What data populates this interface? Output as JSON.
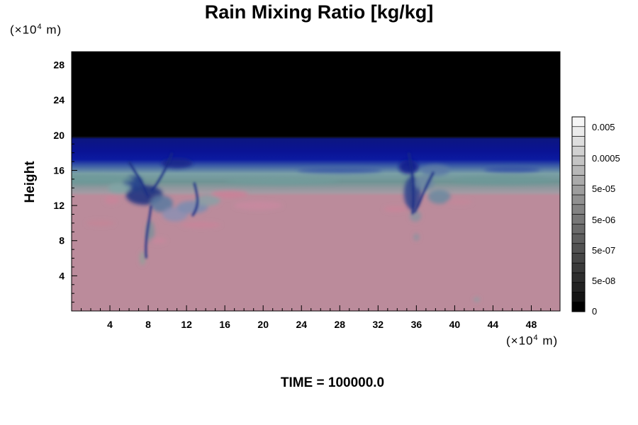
{
  "chart_data": {
    "type": "heatmap",
    "title": "Rain Mixing Ratio [kg/kg]",
    "ylabel": "Height",
    "y_unit": {
      "prefix": "(×10",
      "exp": "4",
      "suffix": " m)"
    },
    "x_unit": {
      "prefix": "(×10",
      "exp": "4",
      "suffix": " m)"
    },
    "xlim": [
      0,
      51
    ],
    "ylim": [
      0,
      29.5
    ],
    "x_ticks": [
      4,
      8,
      12,
      16,
      20,
      24,
      28,
      32,
      36,
      40,
      44,
      48
    ],
    "y_ticks": [
      4,
      8,
      12,
      16,
      20,
      24,
      28
    ],
    "time_label": "TIME = 100000.0",
    "colorbar": {
      "tick_labels": [
        "0",
        "5e-08",
        "5e-07",
        "5e-06",
        "5e-05",
        "0.0005",
        "0.005"
      ],
      "colors": [
        "#000000",
        "#141414",
        "#222222",
        "#2e2e2e",
        "#3a3a3a",
        "#464646",
        "#525252",
        "#5e5e5e",
        "#6a6a6a",
        "#777777",
        "#838383",
        "#909090",
        "#9d9d9d",
        "#aaaaaa",
        "#b7b7b7",
        "#c4c4c4",
        "#d1d1d1",
        "#dedede",
        "#ebebeb",
        "#f6f6f6"
      ]
    },
    "layers": [
      {
        "name": "top",
        "y_from": 19.8,
        "y_to": 29.5,
        "color": "#000000"
      },
      {
        "name": "dark-blue-band",
        "y_from": 16.2,
        "y_to": 19.8,
        "color": "#0a1494"
      },
      {
        "name": "teal-band",
        "y_from": 13.4,
        "y_to": 16.2,
        "color": "#6a9898"
      },
      {
        "name": "lower",
        "y_from": 0,
        "y_to": 13.4,
        "color": "#bb8b9b"
      }
    ]
  }
}
